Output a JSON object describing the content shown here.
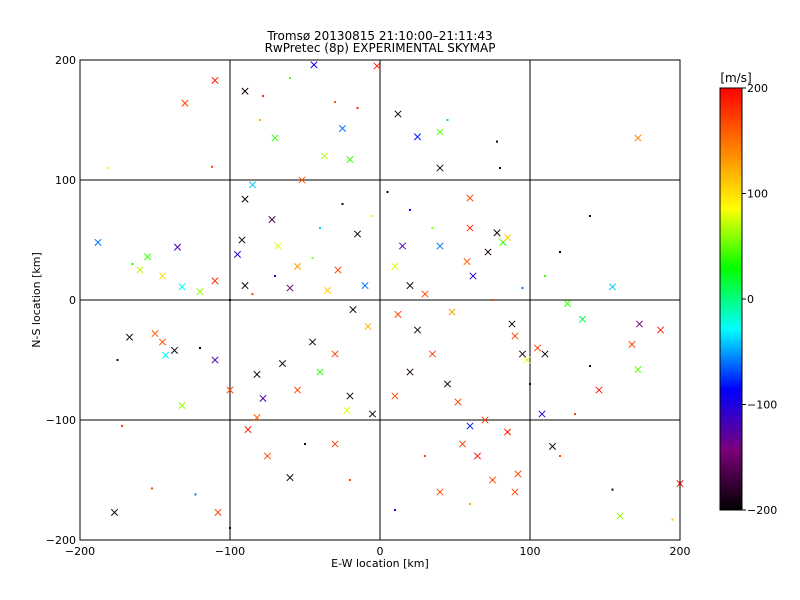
{
  "title_line1": "Tromsø 20130815 21:10:00–21:11:43",
  "title_line2": "RwPretec (8p) EXPERIMENTAL SKYMAP",
  "chart_data": {
    "type": "scatter",
    "xlabel": "E-W location [km]",
    "ylabel": "N-S location [km]",
    "xlim": [
      -200,
      200
    ],
    "ylim": [
      -200,
      200
    ],
    "xticks": [
      -200,
      -100,
      0,
      100,
      200
    ],
    "yticks": [
      -200,
      -100,
      0,
      100,
      200
    ],
    "xtick_labels": [
      "−200",
      "−100",
      "0",
      "100",
      "200"
    ],
    "ytick_labels": [
      "−200",
      "−100",
      "0",
      "100",
      "200"
    ],
    "grid": true,
    "colorbar": {
      "label": "[m/s]",
      "range": [
        -200,
        200
      ],
      "ticks": [
        200,
        100,
        0,
        -100,
        -200
      ],
      "tick_labels": [
        "200",
        "100",
        "0",
        "−100",
        "−200"
      ],
      "colors": [
        "#000000",
        "#7a007a",
        "#0000ff",
        "#00ffff",
        "#00ff00",
        "#ffff00",
        "#ff8000",
        "#ff0000"
      ]
    },
    "marker_types": [
      "dot",
      "x"
    ],
    "points": [
      {
        "x": -44,
        "y": 196,
        "v": -90,
        "m": "x"
      },
      {
        "x": -130,
        "y": 164,
        "v": 170,
        "m": "x"
      },
      {
        "x": -110,
        "y": 183,
        "v": 190,
        "m": "x"
      },
      {
        "x": -90,
        "y": 174,
        "v": -190,
        "m": "x"
      },
      {
        "x": 12,
        "y": 155,
        "v": -190,
        "m": "x"
      },
      {
        "x": 25,
        "y": 136,
        "v": -80,
        "m": "x"
      },
      {
        "x": 172,
        "y": 135,
        "v": 140,
        "m": "x"
      },
      {
        "x": -20,
        "y": 117,
        "v": 40,
        "m": "x"
      },
      {
        "x": -25,
        "y": 143,
        "v": -60,
        "m": "x"
      },
      {
        "x": -70,
        "y": 135,
        "v": 40,
        "m": "x"
      },
      {
        "x": -37,
        "y": 120,
        "v": 70,
        "m": "x"
      },
      {
        "x": -85,
        "y": 96,
        "v": -40,
        "m": "x"
      },
      {
        "x": -90,
        "y": 84,
        "v": -190,
        "m": "x"
      },
      {
        "x": -72,
        "y": 67,
        "v": -170,
        "m": "x"
      },
      {
        "x": -52,
        "y": 100,
        "v": 160,
        "m": "x"
      },
      {
        "x": 40,
        "y": 110,
        "v": -190,
        "m": "x"
      },
      {
        "x": 60,
        "y": 85,
        "v": 170,
        "m": "x"
      },
      {
        "x": -188,
        "y": 48,
        "v": -60,
        "m": "x"
      },
      {
        "x": -155,
        "y": 36,
        "v": 40,
        "m": "x"
      },
      {
        "x": -145,
        "y": 20,
        "v": 100,
        "m": "x"
      },
      {
        "x": -160,
        "y": 25,
        "v": 70,
        "m": "x"
      },
      {
        "x": -135,
        "y": 44,
        "v": -120,
        "m": "x"
      },
      {
        "x": -110,
        "y": 16,
        "v": 180,
        "m": "x"
      },
      {
        "x": -120,
        "y": 7,
        "v": 60,
        "m": "x"
      },
      {
        "x": -132,
        "y": 11,
        "v": -30,
        "m": "x"
      },
      {
        "x": -92,
        "y": 50,
        "v": -190,
        "m": "x"
      },
      {
        "x": -95,
        "y": 38,
        "v": -100,
        "m": "x"
      },
      {
        "x": -90,
        "y": 12,
        "v": -190,
        "m": "x"
      },
      {
        "x": -68,
        "y": 45,
        "v": 80,
        "m": "x"
      },
      {
        "x": -55,
        "y": 28,
        "v": 130,
        "m": "x"
      },
      {
        "x": 60,
        "y": 60,
        "v": 180,
        "m": "x"
      },
      {
        "x": 78,
        "y": 56,
        "v": -190,
        "m": "x"
      },
      {
        "x": 82,
        "y": 48,
        "v": 40,
        "m": "x"
      },
      {
        "x": 85,
        "y": 52,
        "v": 110,
        "m": "x"
      },
      {
        "x": 72,
        "y": 40,
        "v": -190,
        "m": "x"
      },
      {
        "x": 58,
        "y": 32,
        "v": 160,
        "m": "x"
      },
      {
        "x": 62,
        "y": 20,
        "v": -100,
        "m": "x"
      },
      {
        "x": 40,
        "y": 45,
        "v": -60,
        "m": "x"
      },
      {
        "x": 155,
        "y": 11,
        "v": -40,
        "m": "x"
      },
      {
        "x": 125,
        "y": -3,
        "v": 40,
        "m": "x"
      },
      {
        "x": 135,
        "y": -16,
        "v": 10,
        "m": "x"
      },
      {
        "x": 173,
        "y": -20,
        "v": -140,
        "m": "x"
      },
      {
        "x": 187,
        "y": -25,
        "v": 190,
        "m": "x"
      },
      {
        "x": 168,
        "y": -37,
        "v": 170,
        "m": "x"
      },
      {
        "x": 172,
        "y": -58,
        "v": 50,
        "m": "x"
      },
      {
        "x": 146,
        "y": -75,
        "v": 190,
        "m": "x"
      },
      {
        "x": -167,
        "y": -31,
        "v": -190,
        "m": "x"
      },
      {
        "x": -150,
        "y": -28,
        "v": 160,
        "m": "x"
      },
      {
        "x": -145,
        "y": -35,
        "v": 170,
        "m": "x"
      },
      {
        "x": -137,
        "y": -42,
        "v": -190,
        "m": "x"
      },
      {
        "x": -143,
        "y": -46,
        "v": -30,
        "m": "x"
      },
      {
        "x": -132,
        "y": -88,
        "v": 60,
        "m": "x"
      },
      {
        "x": -110,
        "y": -50,
        "v": -120,
        "m": "x"
      },
      {
        "x": -100,
        "y": -75,
        "v": 170,
        "m": "x"
      },
      {
        "x": -82,
        "y": -62,
        "v": -190,
        "m": "x"
      },
      {
        "x": -78,
        "y": -82,
        "v": -120,
        "m": "x"
      },
      {
        "x": -82,
        "y": -98,
        "v": 160,
        "m": "x"
      },
      {
        "x": -75,
        "y": -130,
        "v": 170,
        "m": "x"
      },
      {
        "x": -60,
        "y": -148,
        "v": -190,
        "m": "x"
      },
      {
        "x": -65,
        "y": -53,
        "v": -190,
        "m": "x"
      },
      {
        "x": -55,
        "y": -75,
        "v": 170,
        "m": "x"
      },
      {
        "x": -40,
        "y": -60,
        "v": 40,
        "m": "x"
      },
      {
        "x": -45,
        "y": -35,
        "v": -190,
        "m": "x"
      },
      {
        "x": -30,
        "y": -45,
        "v": 170,
        "m": "x"
      },
      {
        "x": -20,
        "y": -80,
        "v": -190,
        "m": "x"
      },
      {
        "x": -22,
        "y": -92,
        "v": 80,
        "m": "x"
      },
      {
        "x": -5,
        "y": -95,
        "v": -190,
        "m": "x"
      },
      {
        "x": 10,
        "y": -80,
        "v": 170,
        "m": "x"
      },
      {
        "x": 20,
        "y": -60,
        "v": -190,
        "m": "x"
      },
      {
        "x": 35,
        "y": -45,
        "v": 170,
        "m": "x"
      },
      {
        "x": 45,
        "y": -70,
        "v": -190,
        "m": "x"
      },
      {
        "x": 52,
        "y": -85,
        "v": 170,
        "m": "x"
      },
      {
        "x": 55,
        "y": -120,
        "v": 170,
        "m": "x"
      },
      {
        "x": 60,
        "y": -105,
        "v": -80,
        "m": "x"
      },
      {
        "x": 65,
        "y": -130,
        "v": 190,
        "m": "x"
      },
      {
        "x": 70,
        "y": -100,
        "v": 170,
        "m": "x"
      },
      {
        "x": 75,
        "y": -150,
        "v": 170,
        "m": "x"
      },
      {
        "x": 85,
        "y": -110,
        "v": 190,
        "m": "x"
      },
      {
        "x": 88,
        "y": -20,
        "v": -190,
        "m": "x"
      },
      {
        "x": 90,
        "y": -30,
        "v": 170,
        "m": "x"
      },
      {
        "x": 95,
        "y": -45,
        "v": -190,
        "m": "x"
      },
      {
        "x": 98,
        "y": -50,
        "v": 80,
        "m": "x"
      },
      {
        "x": 105,
        "y": -40,
        "v": 170,
        "m": "x"
      },
      {
        "x": 110,
        "y": -45,
        "v": -190,
        "m": "x"
      },
      {
        "x": 108,
        "y": -95,
        "v": -100,
        "m": "x"
      },
      {
        "x": 115,
        "y": -122,
        "v": -190,
        "m": "x"
      },
      {
        "x": 92,
        "y": -145,
        "v": 170,
        "m": "x"
      },
      {
        "x": 90,
        "y": -160,
        "v": 170,
        "m": "x"
      },
      {
        "x": 200,
        "y": -153,
        "v": 190,
        "m": "x"
      },
      {
        "x": -177,
        "y": -177,
        "v": -190,
        "m": "x"
      },
      {
        "x": -108,
        "y": -177,
        "v": 170,
        "m": "x"
      },
      {
        "x": -2,
        "y": 195,
        "v": 190,
        "m": "x"
      },
      {
        "x": 40,
        "y": 140,
        "v": 50,
        "m": "x"
      },
      {
        "x": -15,
        "y": 55,
        "v": -190,
        "m": "x"
      },
      {
        "x": 15,
        "y": 45,
        "v": -120,
        "m": "x"
      },
      {
        "x": 10,
        "y": 28,
        "v": 80,
        "m": "x"
      },
      {
        "x": -28,
        "y": 25,
        "v": 170,
        "m": "x"
      },
      {
        "x": -10,
        "y": 12,
        "v": -60,
        "m": "x"
      },
      {
        "x": 20,
        "y": 12,
        "v": -190,
        "m": "x"
      },
      {
        "x": -35,
        "y": 8,
        "v": 110,
        "m": "x"
      },
      {
        "x": 30,
        "y": 5,
        "v": 170,
        "m": "x"
      },
      {
        "x": -18,
        "y": -8,
        "v": -190,
        "m": "x"
      },
      {
        "x": 12,
        "y": -12,
        "v": 170,
        "m": "x"
      },
      {
        "x": -8,
        "y": -22,
        "v": 120,
        "m": "x"
      },
      {
        "x": 25,
        "y": -25,
        "v": -190,
        "m": "x"
      },
      {
        "x": -60,
        "y": 10,
        "v": -140,
        "m": "x"
      },
      {
        "x": 48,
        "y": -10,
        "v": 130,
        "m": "x"
      },
      {
        "x": -30,
        "y": -120,
        "v": 170,
        "m": "x"
      },
      {
        "x": 40,
        "y": -160,
        "v": 170,
        "m": "x"
      },
      {
        "x": -88,
        "y": -108,
        "v": 190,
        "m": "x"
      },
      {
        "x": 160,
        "y": -180,
        "v": 60,
        "m": "x"
      },
      {
        "x": -181,
        "y": 110,
        "v": 90,
        "m": "dot"
      },
      {
        "x": -112,
        "y": 111,
        "v": 170,
        "m": "dot"
      },
      {
        "x": -60,
        "y": 185,
        "v": 50,
        "m": "dot"
      },
      {
        "x": -78,
        "y": 170,
        "v": 180,
        "m": "dot"
      },
      {
        "x": -80,
        "y": 150,
        "v": 120,
        "m": "dot"
      },
      {
        "x": -30,
        "y": 165,
        "v": 160,
        "m": "dot"
      },
      {
        "x": -15,
        "y": 160,
        "v": 180,
        "m": "dot"
      },
      {
        "x": 80,
        "y": 110,
        "v": -190,
        "m": "dot"
      },
      {
        "x": 45,
        "y": 150,
        "v": -40,
        "m": "dot"
      },
      {
        "x": 78,
        "y": 132,
        "v": -190,
        "m": "dot"
      },
      {
        "x": 140,
        "y": 70,
        "v": -190,
        "m": "dot"
      },
      {
        "x": 120,
        "y": 40,
        "v": -190,
        "m": "dot"
      },
      {
        "x": -165,
        "y": 30,
        "v": 30,
        "m": "dot"
      },
      {
        "x": -175,
        "y": -50,
        "v": -190,
        "m": "dot"
      },
      {
        "x": -120,
        "y": -40,
        "v": -190,
        "m": "dot"
      },
      {
        "x": -152,
        "y": -157,
        "v": 170,
        "m": "dot"
      },
      {
        "x": -123,
        "y": -162,
        "v": -60,
        "m": "dot"
      },
      {
        "x": -100,
        "y": -190,
        "v": -190,
        "m": "dot"
      },
      {
        "x": 155,
        "y": -158,
        "v": -190,
        "m": "dot"
      },
      {
        "x": 195,
        "y": -183,
        "v": 110,
        "m": "dot"
      },
      {
        "x": -172,
        "y": -105,
        "v": 170,
        "m": "dot"
      },
      {
        "x": -100,
        "y": 0,
        "v": -190,
        "m": "dot"
      },
      {
        "x": -85,
        "y": 5,
        "v": 170,
        "m": "dot"
      },
      {
        "x": -70,
        "y": 20,
        "v": -100,
        "m": "dot"
      },
      {
        "x": -45,
        "y": 35,
        "v": 60,
        "m": "dot"
      },
      {
        "x": 140,
        "y": -55,
        "v": -190,
        "m": "dot"
      },
      {
        "x": 130,
        "y": -95,
        "v": 170,
        "m": "dot"
      },
      {
        "x": 100,
        "y": -70,
        "v": -190,
        "m": "dot"
      },
      {
        "x": 120,
        "y": -130,
        "v": 170,
        "m": "dot"
      },
      {
        "x": 60,
        "y": -170,
        "v": 120,
        "m": "dot"
      },
      {
        "x": 10,
        "y": -175,
        "v": -100,
        "m": "dot"
      },
      {
        "x": -20,
        "y": -150,
        "v": 170,
        "m": "dot"
      },
      {
        "x": -50,
        "y": -120,
        "v": -190,
        "m": "dot"
      },
      {
        "x": 30,
        "y": -130,
        "v": 170,
        "m": "dot"
      },
      {
        "x": 110,
        "y": 20,
        "v": 40,
        "m": "dot"
      },
      {
        "x": 95,
        "y": 10,
        "v": -60,
        "m": "dot"
      },
      {
        "x": 75,
        "y": 0,
        "v": 170,
        "m": "dot"
      },
      {
        "x": -25,
        "y": 80,
        "v": -190,
        "m": "dot"
      },
      {
        "x": 5,
        "y": 90,
        "v": -190,
        "m": "dot"
      },
      {
        "x": -5,
        "y": 70,
        "v": 80,
        "m": "dot"
      },
      {
        "x": 20,
        "y": 75,
        "v": -80,
        "m": "dot"
      },
      {
        "x": -40,
        "y": 60,
        "v": -40,
        "m": "dot"
      },
      {
        "x": 35,
        "y": 60,
        "v": 60,
        "m": "dot"
      }
    ]
  }
}
